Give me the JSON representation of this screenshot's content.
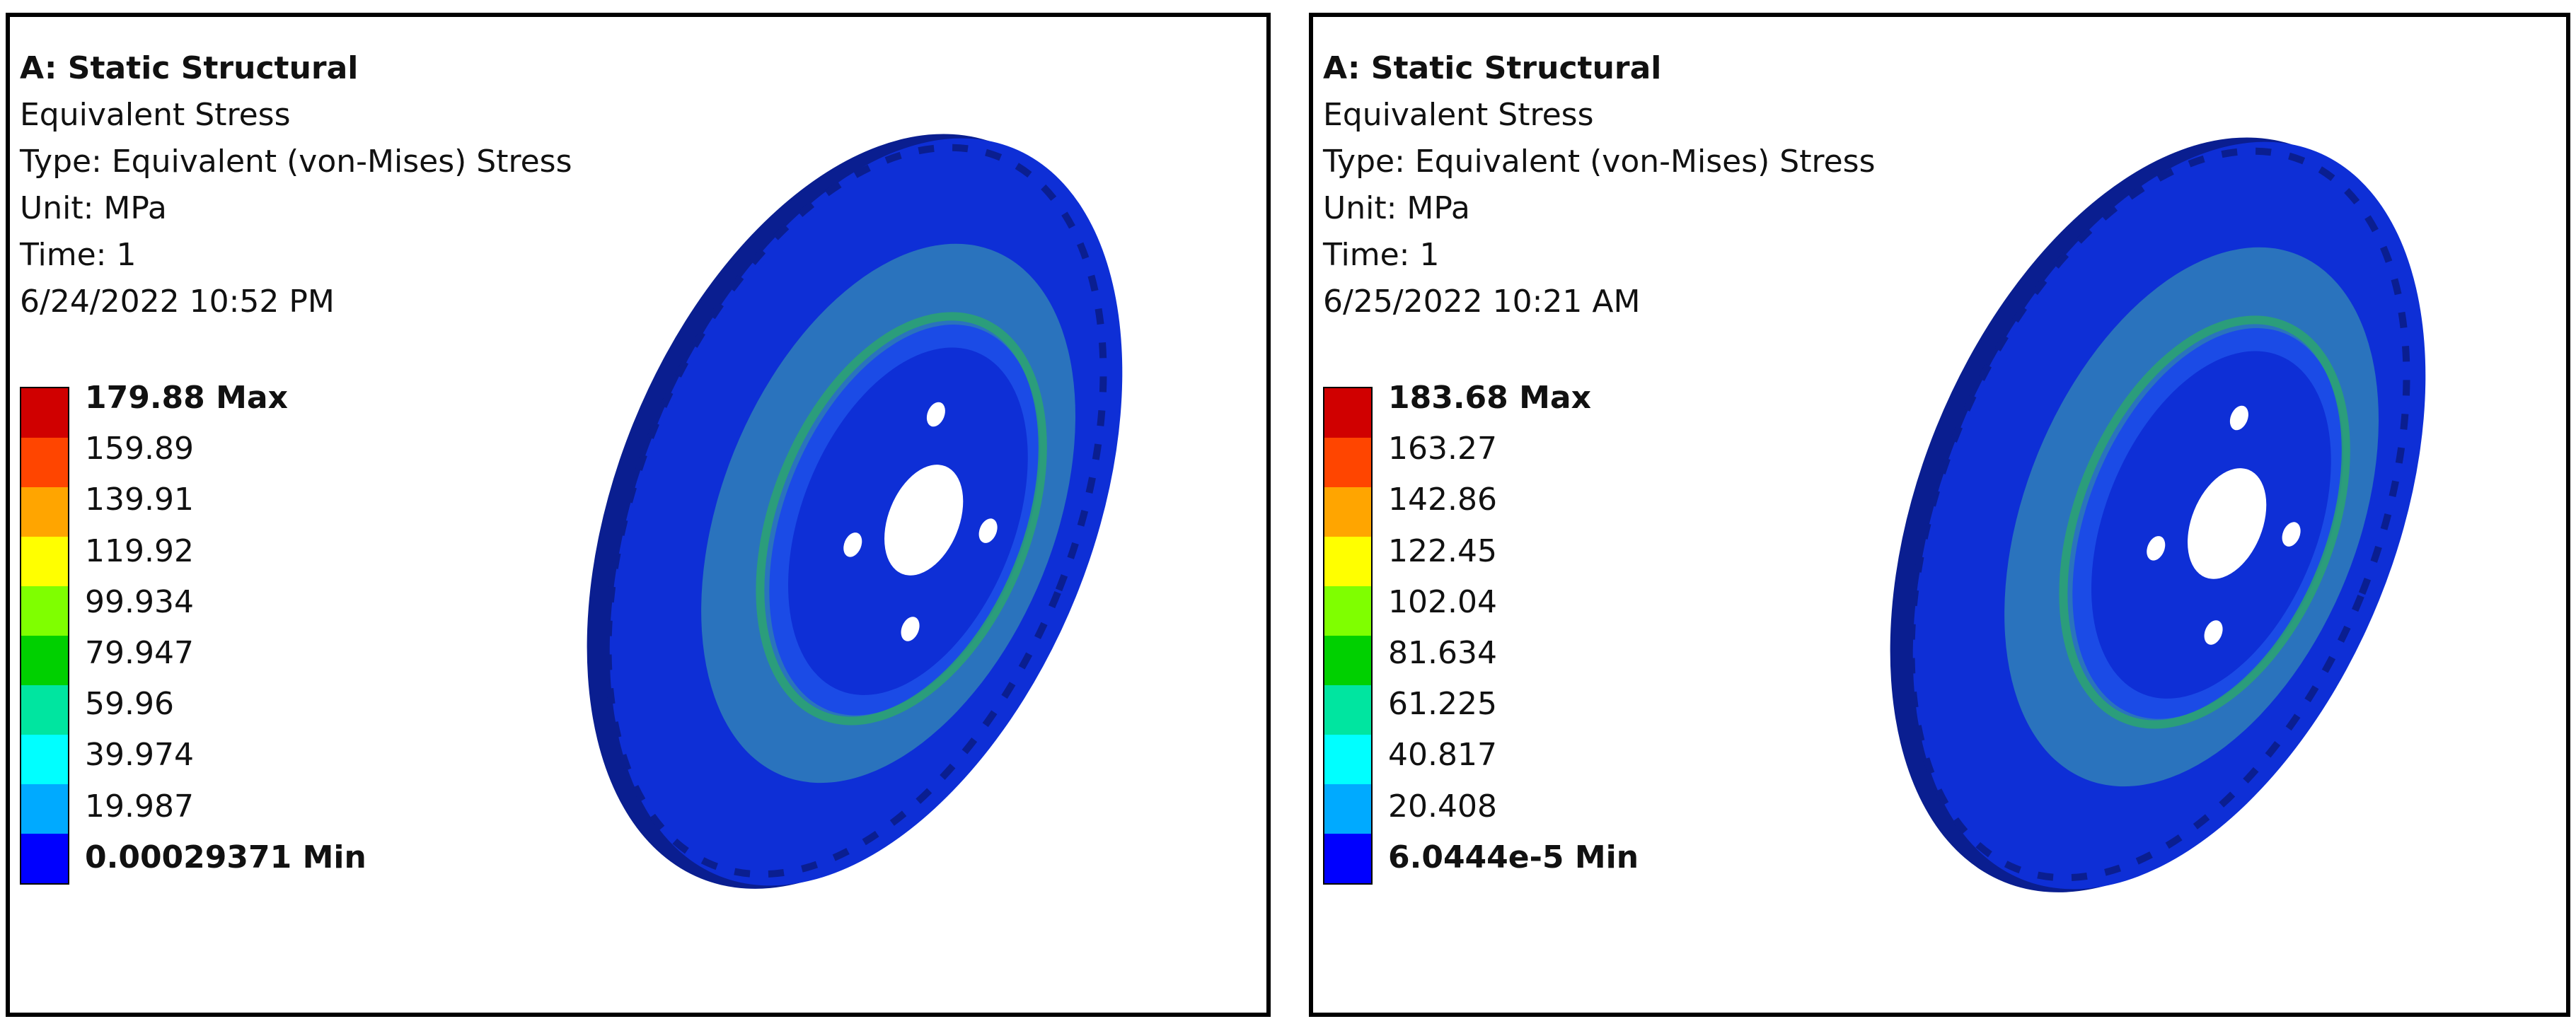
{
  "colors": {
    "scale": [
      "#d00000",
      "#ff4500",
      "#ffa500",
      "#ffff00",
      "#7fff00",
      "#00d000",
      "#00e5a0",
      "#00ffff",
      "#00aaff",
      "#0000ff"
    ],
    "disk_dark": "#0a1e90",
    "disk_base": "#0e2fd6",
    "disk_light": "#1b4be6",
    "teal_region": "#2f7fb8"
  },
  "panels": [
    {
      "title": "A: Static Structural",
      "result_name": "Equivalent Stress",
      "type_line": "Type: Equivalent (von-Mises) Stress",
      "unit_line": "Unit: MPa",
      "time_line": "Time: 1",
      "timestamp": "6/24/2022 10:52 PM",
      "legend_labels": [
        "179.88 Max",
        "159.89",
        "139.91",
        "119.92",
        "99.934",
        "79.947",
        "59.96",
        "39.974",
        "19.987",
        "0.00029371 Min"
      ]
    },
    {
      "title": "A: Static Structural",
      "result_name": "Equivalent Stress",
      "type_line": "Type: Equivalent (von-Mises) Stress",
      "unit_line": "Unit: MPa",
      "time_line": "Time: 1",
      "timestamp": "6/25/2022 10:21 AM",
      "legend_labels": [
        "183.68 Max",
        "163.27",
        "142.86",
        "122.45",
        "102.04",
        "81.634",
        "61.225",
        "40.817",
        "20.408",
        "6.0444e-5 Min"
      ]
    }
  ]
}
